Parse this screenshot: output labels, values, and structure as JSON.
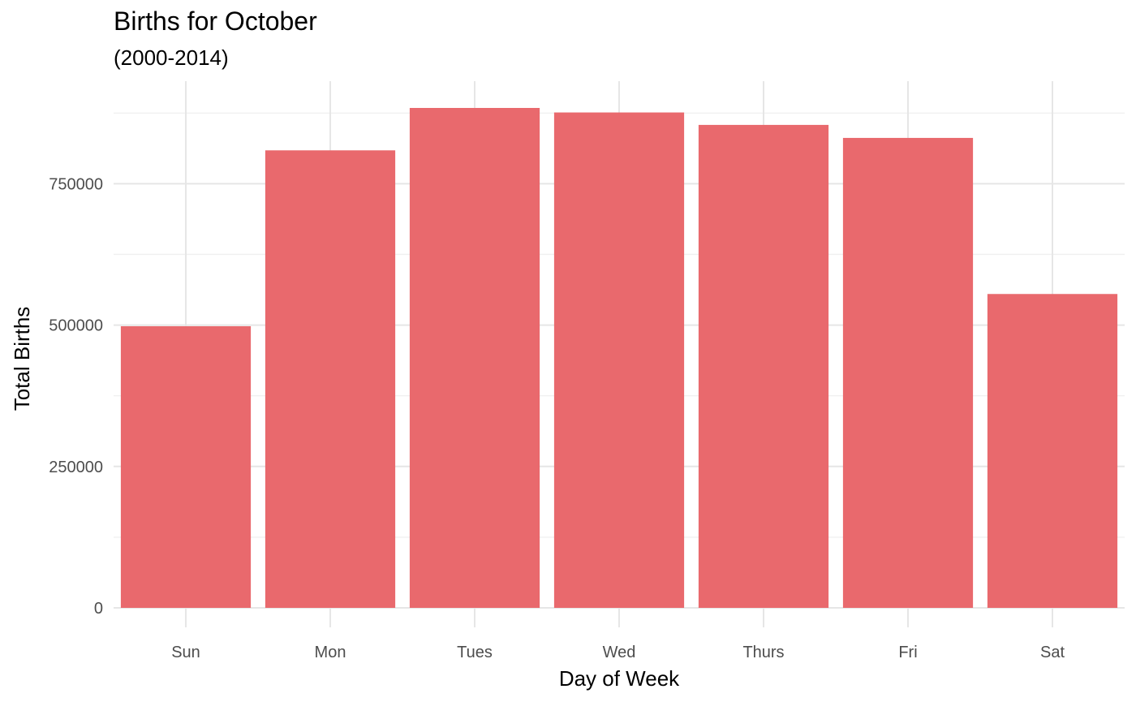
{
  "chart_data": {
    "type": "bar",
    "title": "Births for October",
    "subtitle": "(2000-2014)",
    "xlabel": "Day of Week",
    "ylabel": "Total Births",
    "categories": [
      "Sun",
      "Mon",
      "Tues",
      "Wed",
      "Thurs",
      "Fri",
      "Sat"
    ],
    "values": [
      498000,
      809000,
      884000,
      876000,
      854000,
      831000,
      555000
    ],
    "ylim": [
      0,
      920000
    ],
    "yticks": [
      0,
      250000,
      500000,
      750000
    ],
    "ytick_labels": [
      "0",
      "250000",
      "500000",
      "750000"
    ],
    "grid": true,
    "legend": "none",
    "bar_color": "#e9696d"
  }
}
